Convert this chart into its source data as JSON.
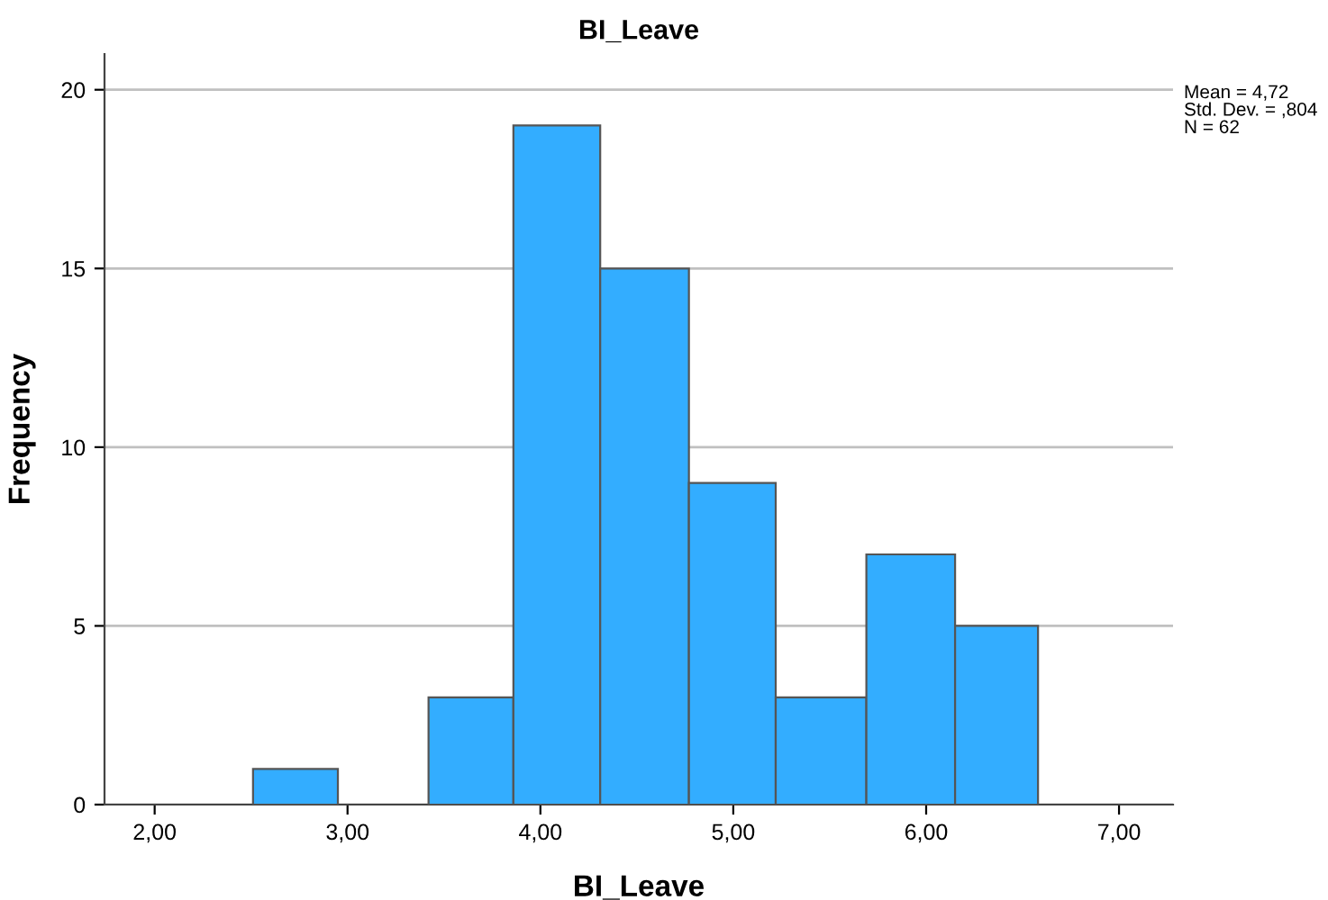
{
  "chart_data": {
    "type": "histogram",
    "title": "BI_Leave",
    "xlabel": "BI_Leave",
    "ylabel": "Frequency",
    "bins": [
      2.51,
      2.95,
      3.42,
      3.86,
      4.31,
      4.77,
      5.22,
      5.69,
      6.15,
      6.58
    ],
    "values": [
      1,
      0,
      3,
      19,
      15,
      9,
      3,
      7,
      5
    ],
    "color": "#33adff",
    "xlim": [
      1.74,
      7.28
    ],
    "ylim": [
      0,
      21
    ],
    "xticks": [
      {
        "value": 2,
        "label": "2,00"
      },
      {
        "value": 3,
        "label": "3,00"
      },
      {
        "value": 4,
        "label": "4,00"
      },
      {
        "value": 5,
        "label": "5,00"
      },
      {
        "value": 6,
        "label": "6,00"
      },
      {
        "value": 7,
        "label": "7,00"
      }
    ],
    "yticks": [
      0,
      5,
      10,
      15,
      20
    ],
    "grid": "y",
    "legend": false,
    "annotations": [
      "Mean = 4,72\nStd. Dev. = ,804\nN = 62"
    ]
  }
}
